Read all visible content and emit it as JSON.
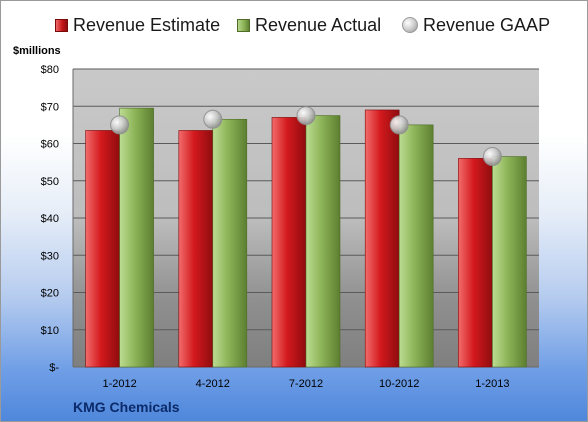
{
  "legend": {
    "estimate": "Revenue Estimate",
    "actual": "Revenue Actual",
    "gaap": "Revenue GAAP"
  },
  "unit_label": "$millions",
  "company": "KMG Chemicals",
  "colors": {
    "estimate": "#c7161a",
    "actual": "#8bb256",
    "gaap": "#c9c9c9"
  },
  "chart_data": {
    "type": "bar",
    "categories": [
      "1-2012",
      "4-2012",
      "7-2012",
      "10-2012",
      "1-2013"
    ],
    "series": [
      {
        "name": "Revenue Estimate",
        "values": [
          63.5,
          63.5,
          67.0,
          69.0,
          56.0
        ]
      },
      {
        "name": "Revenue Actual",
        "values": [
          69.5,
          66.5,
          67.5,
          65.0,
          56.5
        ]
      },
      {
        "name": "Revenue GAAP",
        "type": "scatter",
        "values": [
          65.0,
          66.5,
          67.5,
          65.0,
          56.5
        ]
      }
    ],
    "ylabel": "$millions",
    "ylim": [
      0,
      80
    ],
    "yticks": [
      0,
      10,
      20,
      30,
      40,
      50,
      60,
      70,
      80
    ],
    "ytick_labels": [
      "$-",
      "$10",
      "$20",
      "$30",
      "$40",
      "$50",
      "$60",
      "$70",
      "$80"
    ],
    "grid": true,
    "legend_position": "top"
  }
}
